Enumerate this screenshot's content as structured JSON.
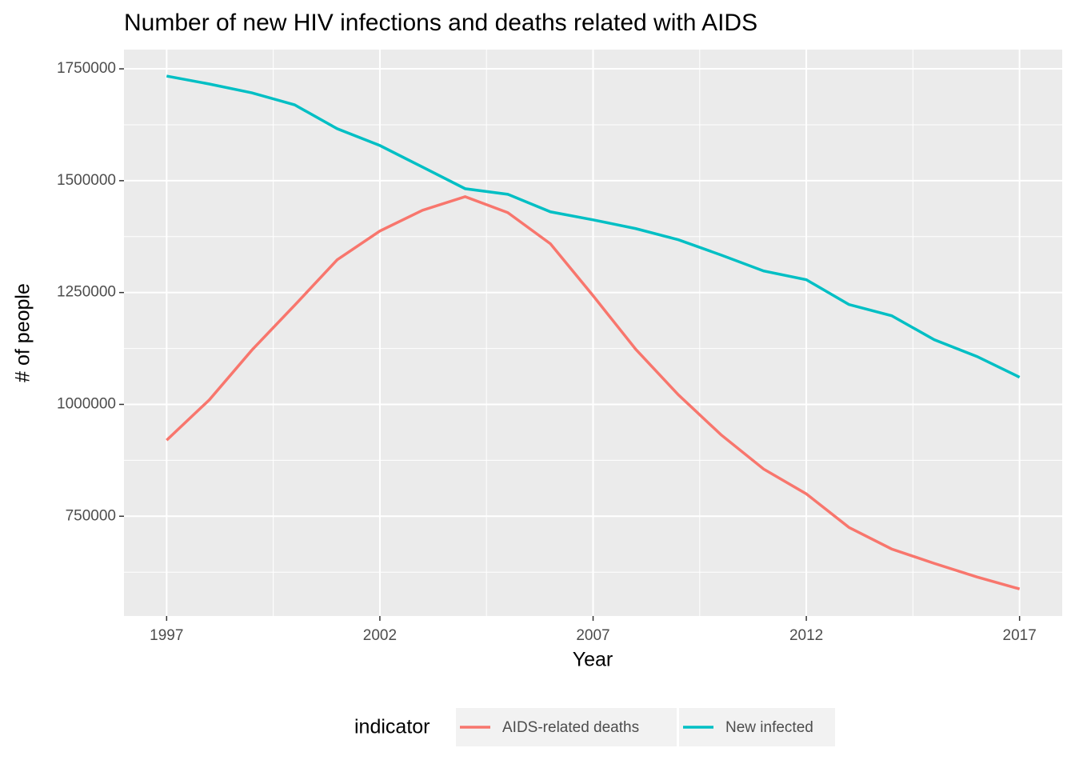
{
  "chart_data": {
    "type": "line",
    "title": "Number of new HIV infections and deaths related with AIDS",
    "x_label": "Year",
    "y_label": "# of people",
    "legend_title": "indicator",
    "legend_position": "bottom",
    "x": [
      1997,
      1998,
      1999,
      2000,
      2001,
      2002,
      2003,
      2004,
      2005,
      2006,
      2007,
      2008,
      2009,
      2010,
      2011,
      2012,
      2013,
      2014,
      2015,
      2016,
      2017
    ],
    "series": [
      {
        "name": "AIDS-related deaths",
        "color": "#f8766d",
        "values": [
          920000,
          1010000,
          1121400,
          1221400,
          1323200,
          1387500,
          1433900,
          1464300,
          1428600,
          1358900,
          1242900,
          1123200,
          1021400,
          932100,
          855400,
          800000,
          725000,
          676800,
          644600,
          614300,
          587500
        ]
      },
      {
        "name": "New infected",
        "color": "#00bfc4",
        "values": [
          1733900,
          1716100,
          1696400,
          1669600,
          1616100,
          1578600,
          1530400,
          1482100,
          1469600,
          1430400,
          1412500,
          1392900,
          1367900,
          1333900,
          1298200,
          1278600,
          1223200,
          1198200,
          1144600,
          1107100,
          1060700
        ]
      }
    ],
    "xlim": [
      1996,
      2018
    ],
    "xticks": [
      1997,
      2002,
      2007,
      2012,
      2017
    ],
    "ylim": [
      527000,
      1793000
    ],
    "yticks": [
      750000,
      1000000,
      1250000,
      1500000,
      1750000
    ],
    "grid": true
  }
}
